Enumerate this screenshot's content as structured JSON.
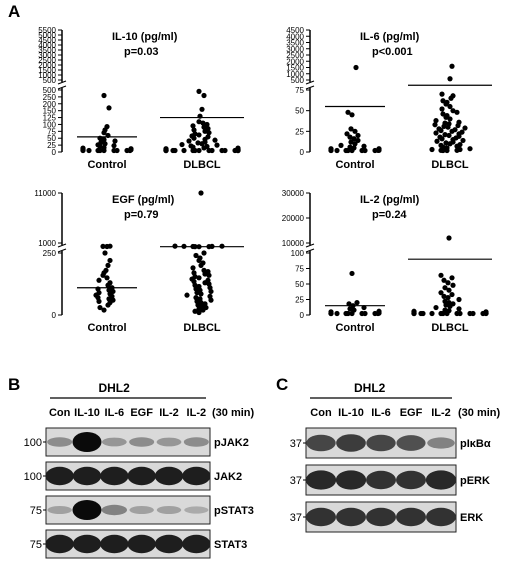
{
  "panel_letters": {
    "a": "A",
    "b": "B",
    "c": "C"
  },
  "chart_data": [
    {
      "type": "scatter",
      "title": "IL-10 (pg/ml)",
      "pvalue": "p=0.03",
      "categories": [
        "Control",
        "DLBCL"
      ],
      "y_ticks_lower": [
        "0",
        "25",
        "50",
        "75",
        "100",
        "125",
        "150",
        "200",
        "250",
        "500"
      ],
      "y_ticks_upper": [
        "500",
        "1000",
        "1500",
        "2000",
        "2500",
        "3000",
        "3500",
        "4000",
        "4500",
        "5000",
        "5500"
      ],
      "broken_axis": true,
      "means": {
        "Control": 55,
        "DLBCL": 125
      },
      "series": [
        {
          "name": "",
          "category": "Control",
          "values": [
            3,
            3,
            3,
            3,
            3,
            3,
            3,
            3,
            5,
            7,
            8,
            10,
            12,
            14,
            16,
            20,
            23,
            26,
            30,
            35,
            40,
            45,
            50,
            60,
            70,
            80,
            92,
            170,
            300
          ]
        },
        {
          "name": "",
          "category": "DLBCL",
          "values": [
            2,
            2,
            2,
            2,
            2,
            2,
            2,
            2,
            2,
            3,
            3,
            3,
            3,
            4,
            4,
            5,
            5,
            6,
            6,
            7,
            8,
            8,
            9,
            10,
            10,
            12,
            14,
            15,
            18,
            20,
            22,
            25,
            27,
            30,
            33,
            36,
            40,
            43,
            46,
            50,
            55,
            58,
            62,
            66,
            70,
            75,
            80,
            85,
            90,
            95,
            100,
            105,
            110,
            130,
            160,
            300,
            450
          ]
        }
      ]
    },
    {
      "type": "scatter",
      "title": "IL-6 (pg/ml)",
      "pvalue": "p<0.001",
      "categories": [
        "Control",
        "DLBCL"
      ],
      "y_ticks_lower": [
        "0",
        "25",
        "50",
        "75"
      ],
      "y_ticks_upper": [
        "500",
        "1000",
        "1500",
        "2000",
        "2500",
        "3000",
        "3500",
        "4000",
        "4500"
      ],
      "broken_axis": true,
      "means": {
        "Control": 55,
        "DLBCL": 80
      },
      "series": [
        {
          "name": "",
          "category": "Control",
          "values": [
            1,
            1,
            1,
            1,
            1,
            1,
            1,
            1,
            2,
            2,
            2,
            3,
            3,
            4,
            4,
            5,
            6,
            7,
            8,
            10,
            12,
            14,
            16,
            18,
            20,
            22,
            25,
            28,
            45,
            48,
            1500
          ]
        },
        {
          "name": "",
          "category": "DLBCL",
          "values": [
            1,
            1,
            2,
            2,
            3,
            3,
            4,
            5,
            6,
            7,
            8,
            9,
            10,
            11,
            12,
            13,
            14,
            15,
            16,
            17,
            18,
            19,
            20,
            21,
            22,
            23,
            24,
            25,
            26,
            27,
            28,
            29,
            30,
            31,
            32,
            33,
            34,
            35,
            36,
            38,
            40,
            42,
            44,
            46,
            48,
            50,
            52,
            55,
            58,
            60,
            62,
            65,
            68,
            70,
            600,
            1600
          ]
        }
      ]
    },
    {
      "type": "scatter",
      "title": "EGF (pg/ml)",
      "pvalue": "p=0.79",
      "categories": [
        "Control",
        "DLBCL"
      ],
      "y_ticks_lower": [
        "0",
        "250"
      ],
      "y_ticks_upper": [
        "1000",
        "11000"
      ],
      "broken_axis": true,
      "means": {
        "Control": 110,
        "DLBCL": 260
      },
      "series": [
        {
          "name": "",
          "category": "Control",
          "values": [
            20,
            30,
            40,
            50,
            55,
            60,
            65,
            70,
            75,
            80,
            85,
            90,
            95,
            100,
            105,
            110,
            120,
            130,
            140,
            150,
            160,
            170,
            180,
            200,
            220,
            250,
            300,
            330,
            360
          ]
        },
        {
          "name": "",
          "category": "DLBCL",
          "values": [
            10,
            15,
            20,
            25,
            30,
            35,
            40,
            45,
            50,
            55,
            60,
            65,
            70,
            75,
            80,
            85,
            90,
            95,
            100,
            105,
            110,
            115,
            120,
            125,
            130,
            135,
            140,
            145,
            150,
            155,
            160,
            165,
            170,
            175,
            180,
            190,
            200,
            210,
            220,
            230,
            240,
            250,
            260,
            270,
            280,
            300,
            320,
            340,
            360,
            380,
            11500
          ]
        }
      ]
    },
    {
      "type": "scatter",
      "title": "IL-2 (pg/ml)",
      "pvalue": "p=0.24",
      "categories": [
        "Control",
        "DLBCL"
      ],
      "y_ticks_lower": [
        "0",
        "25",
        "50",
        "75",
        "100"
      ],
      "y_ticks_upper": [
        "10000",
        "20000",
        "30000"
      ],
      "broken_axis": true,
      "means": {
        "Control": 15,
        "DLBCL": 90
      },
      "series": [
        {
          "name": "",
          "category": "Control",
          "values": [
            1,
            1,
            1,
            1,
            1,
            1,
            1,
            2,
            2,
            2,
            3,
            3,
            4,
            5,
            6,
            8,
            10,
            12,
            15,
            18,
            20,
            67
          ]
        },
        {
          "name": "",
          "category": "DLBCL",
          "values": [
            1,
            1,
            1,
            1,
            1,
            1,
            1,
            1,
            1,
            1,
            2,
            2,
            2,
            2,
            3,
            3,
            3,
            4,
            4,
            5,
            5,
            6,
            7,
            8,
            10,
            12,
            14,
            16,
            18,
            20,
            22,
            25,
            28,
            30,
            33,
            36,
            40,
            44,
            48,
            52,
            56,
            60,
            64,
            12000
          ]
        }
      ]
    }
  ],
  "blot_b": {
    "cell_line": "DHL2",
    "time_label": "(30 min)",
    "lanes": [
      "Con",
      "IL-10",
      "IL-6",
      "EGF",
      "IL-2",
      "IL-2"
    ],
    "rows": [
      {
        "label": "pJAK2",
        "mw": "100",
        "intensities": [
          0.35,
          1.0,
          0.3,
          0.35,
          0.3,
          0.35
        ]
      },
      {
        "label": "JAK2",
        "mw": "100",
        "intensities": [
          0.9,
          0.9,
          0.9,
          0.9,
          0.9,
          0.9
        ]
      },
      {
        "label": "pSTAT3",
        "mw": "75",
        "intensities": [
          0.25,
          1.0,
          0.4,
          0.25,
          0.25,
          0.2
        ]
      },
      {
        "label": "STAT3",
        "mw": "75",
        "intensities": [
          0.9,
          0.9,
          0.9,
          0.9,
          0.9,
          0.9
        ]
      }
    ]
  },
  "blot_c": {
    "cell_line": "DHL2",
    "time_label": "(30 min)",
    "lanes": [
      "Con",
      "IL-10",
      "IL-6",
      "EGF",
      "IL-2"
    ],
    "rows": [
      {
        "label": "pIκBα",
        "mw": "37",
        "intensities": [
          0.7,
          0.75,
          0.7,
          0.65,
          0.4
        ]
      },
      {
        "label": "pERK",
        "mw": "37",
        "intensities": [
          0.85,
          0.85,
          0.8,
          0.8,
          0.85
        ]
      },
      {
        "label": "ERK",
        "mw": "37",
        "intensities": [
          0.8,
          0.8,
          0.8,
          0.8,
          0.8
        ]
      }
    ]
  }
}
